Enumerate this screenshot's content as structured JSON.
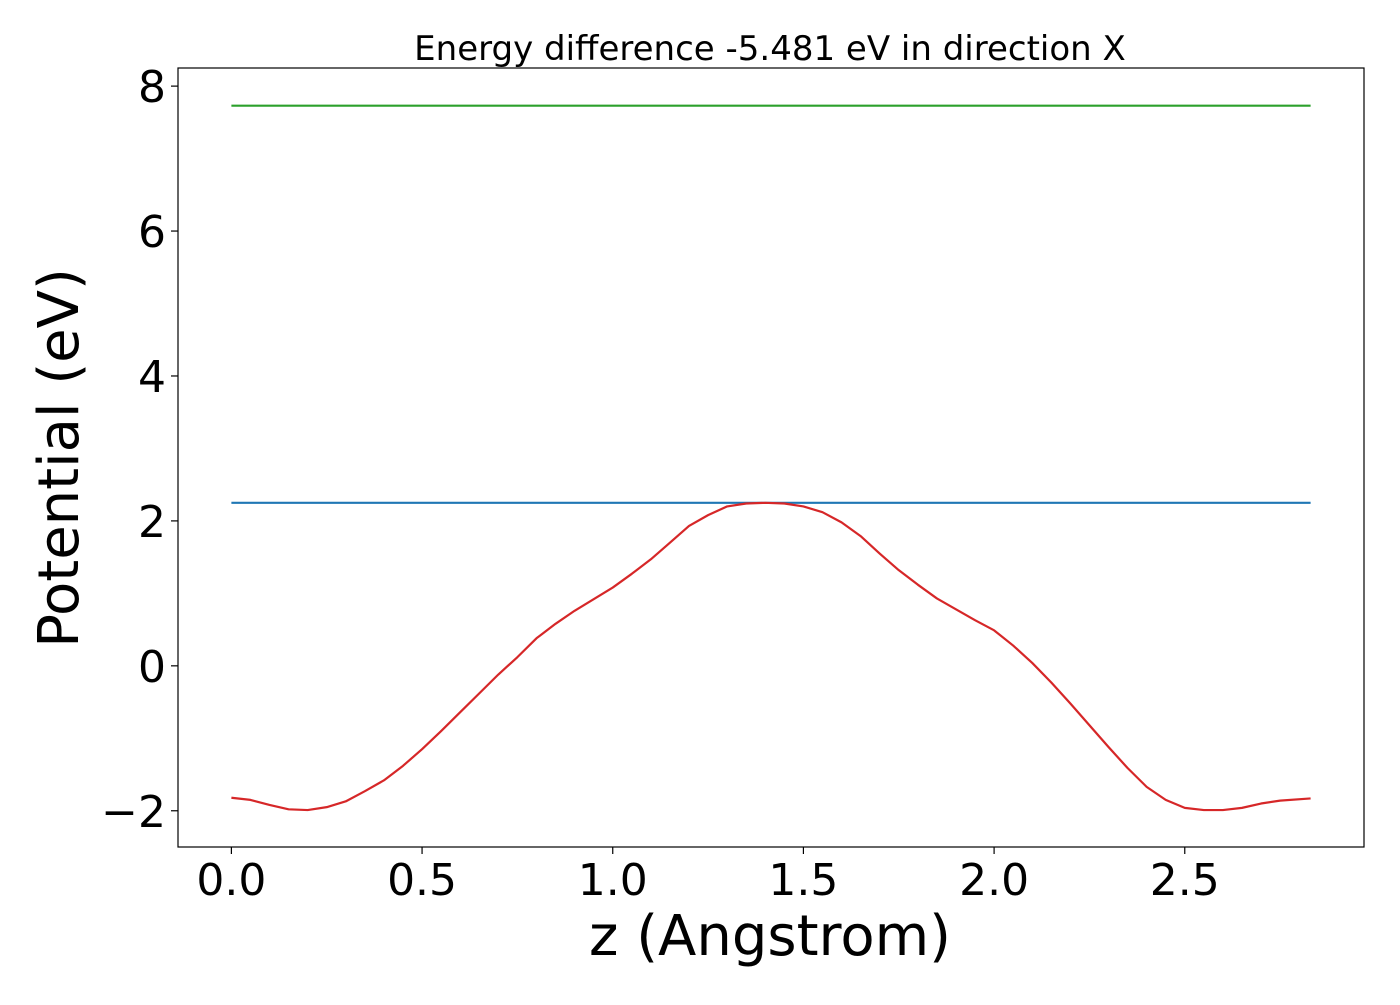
{
  "chart_data": {
    "type": "line",
    "title": "Energy difference -5.481 eV in direction X",
    "xlabel": "z (Angstrom)",
    "ylabel": "Potential (eV)",
    "xlim": [
      -0.14,
      2.97
    ],
    "ylim": [
      -2.5,
      8.25
    ],
    "xticks": [
      0.0,
      0.5,
      1.0,
      1.5,
      2.0,
      2.5
    ],
    "xtick_labels": [
      "0.0",
      "0.5",
      "1.0",
      "1.5",
      "2.0",
      "2.5"
    ],
    "yticks": [
      -2,
      0,
      2,
      4,
      6,
      8
    ],
    "ytick_labels": [
      "−2",
      "0",
      "2",
      "4",
      "6",
      "8"
    ],
    "grid": false,
    "series": [
      {
        "color": "#2ca02c",
        "x": [
          0.0,
          2.83
        ],
        "y": [
          7.73,
          7.73
        ]
      },
      {
        "color": "#1f77b4",
        "x": [
          0.0,
          2.83
        ],
        "y": [
          2.25,
          2.25
        ]
      },
      {
        "color": "#d62728",
        "x": [
          0.0,
          0.05,
          0.1,
          0.15,
          0.2,
          0.25,
          0.3,
          0.35,
          0.4,
          0.45,
          0.5,
          0.55,
          0.6,
          0.65,
          0.7,
          0.75,
          0.8,
          0.85,
          0.9,
          0.95,
          1.0,
          1.05,
          1.1,
          1.15,
          1.2,
          1.25,
          1.3,
          1.35,
          1.4,
          1.45,
          1.5,
          1.55,
          1.6,
          1.65,
          1.7,
          1.75,
          1.8,
          1.85,
          1.9,
          1.95,
          2.0,
          2.05,
          2.1,
          2.15,
          2.2,
          2.25,
          2.3,
          2.35,
          2.4,
          2.45,
          2.5,
          2.55,
          2.6,
          2.65,
          2.7,
          2.75,
          2.83
        ],
        "y": [
          -1.82,
          -1.85,
          -1.92,
          -1.98,
          -1.99,
          -1.95,
          -1.87,
          -1.73,
          -1.58,
          -1.38,
          -1.15,
          -0.9,
          -0.64,
          -0.38,
          -0.12,
          0.12,
          0.38,
          0.58,
          0.76,
          0.92,
          1.08,
          1.27,
          1.47,
          1.7,
          1.93,
          2.08,
          2.2,
          2.24,
          2.25,
          2.24,
          2.2,
          2.12,
          1.98,
          1.79,
          1.55,
          1.32,
          1.12,
          0.93,
          0.78,
          0.63,
          0.49,
          0.28,
          0.04,
          -0.23,
          -0.52,
          -0.82,
          -1.12,
          -1.41,
          -1.67,
          -1.85,
          -1.96,
          -1.99,
          -1.99,
          -1.96,
          -1.9,
          -1.86,
          -1.83
        ]
      }
    ]
  }
}
